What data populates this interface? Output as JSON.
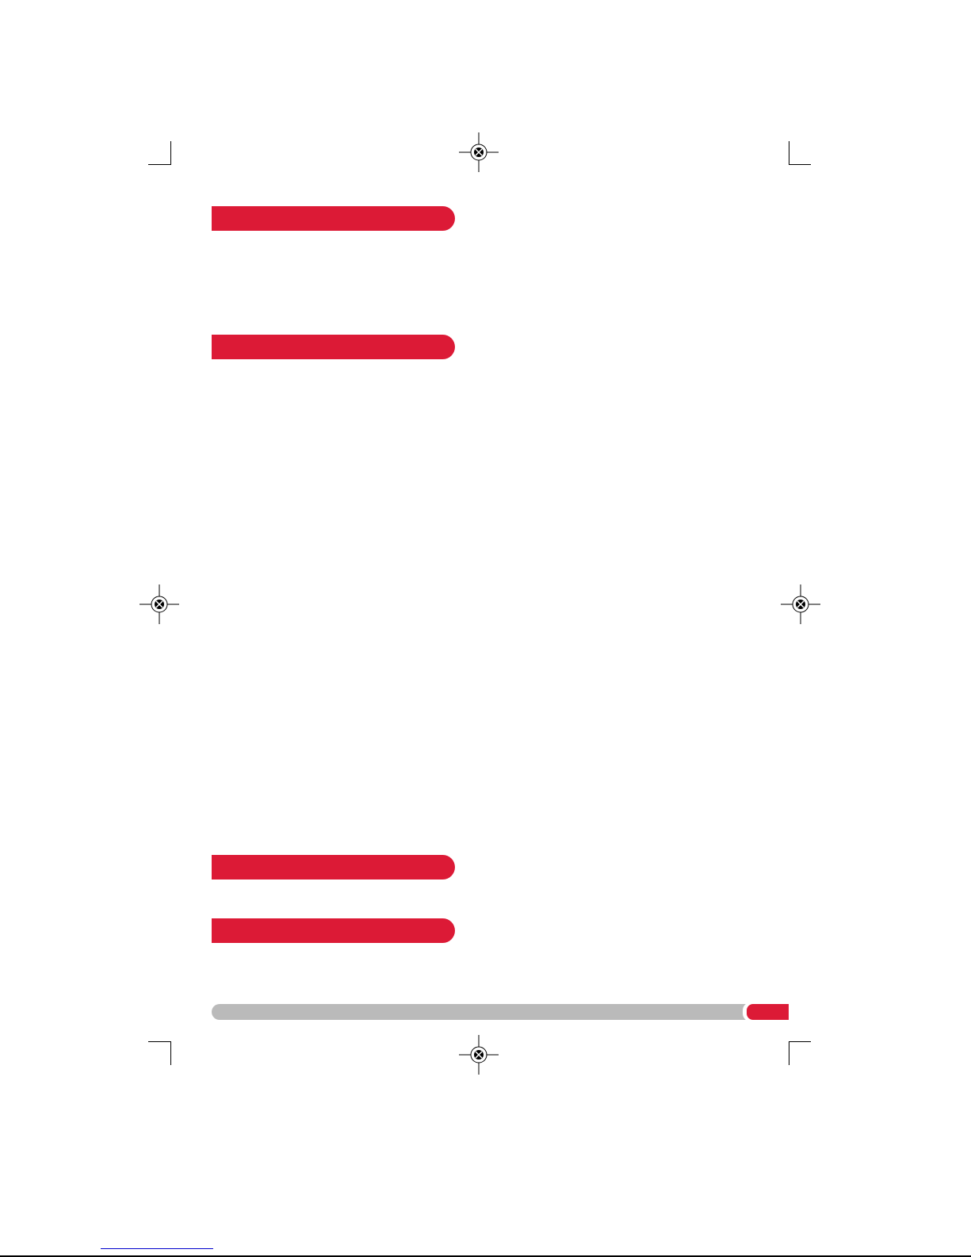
{
  "colors": {
    "section_bar": "#dc1a36",
    "footer_bar": "#bababa",
    "page_tab": "#dc1a36",
    "link_underline": "#0000cc"
  },
  "icons": {
    "registration_mark": "registration-mark-icon",
    "crop_mark": "crop-mark-icon"
  },
  "sections": [
    {
      "heading": ""
    },
    {
      "heading": ""
    },
    {
      "heading": ""
    },
    {
      "heading": ""
    }
  ],
  "footer": {
    "page_number": ""
  }
}
